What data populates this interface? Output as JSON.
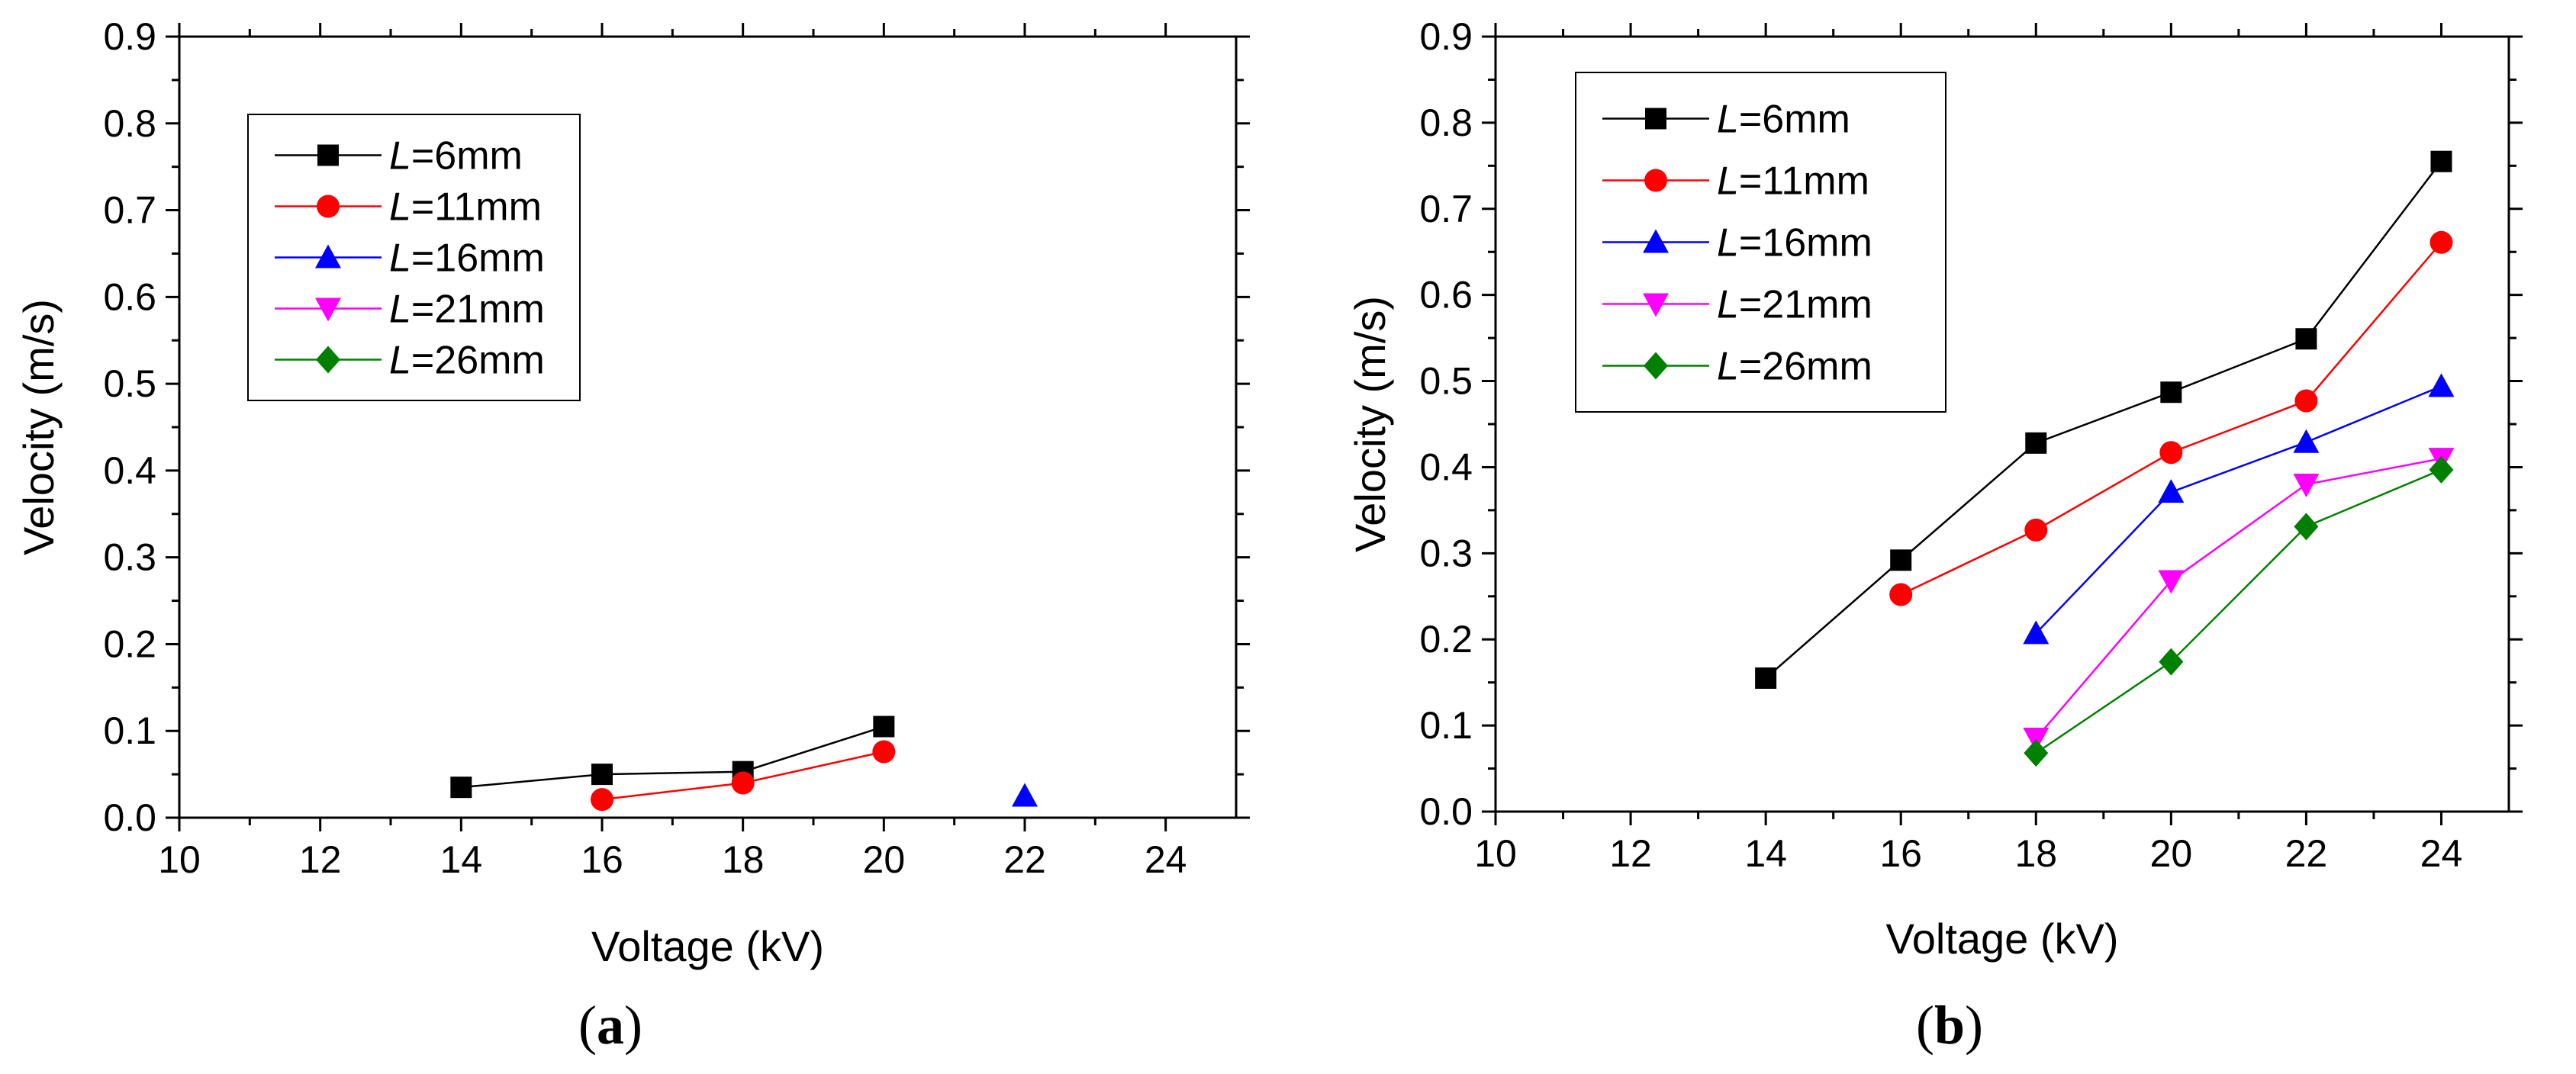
{
  "chart_data": [
    {
      "type": "line",
      "panel_label": "a",
      "xlabel": "Voltage (kV)",
      "ylabel": "Velocity (m/s)",
      "xlim": [
        10,
        25
      ],
      "ylim": [
        0,
        0.9
      ],
      "xticks": [
        10,
        12,
        14,
        16,
        18,
        20,
        22,
        24
      ],
      "xtick_labels": [
        "10",
        "12",
        "14",
        "16",
        "18",
        "20",
        "22",
        "24"
      ],
      "yticks": [
        0,
        0.1,
        0.2,
        0.3,
        0.4,
        0.5,
        0.6,
        0.7,
        0.8,
        0.9
      ],
      "ytick_labels": [
        "0.0",
        "0.1",
        "0.2",
        "0.3",
        "0.4",
        "0.5",
        "0.6",
        "0.7",
        "0.8",
        "0.9"
      ],
      "grid": false,
      "legend_position": "top-left",
      "series": [
        {
          "name": "L=6mm",
          "label_var": "L",
          "label_rest": "=6mm",
          "color": "#000000",
          "marker": "square",
          "x": [
            14,
            16,
            18,
            20
          ],
          "y": [
            0.035,
            0.05,
            0.053,
            0.105
          ]
        },
        {
          "name": "L=11mm",
          "label_var": "L",
          "label_rest": "=11mm",
          "color": "#ff0000",
          "marker": "circle",
          "x": [
            16,
            18,
            20
          ],
          "y": [
            0.021,
            0.04,
            0.076
          ]
        },
        {
          "name": "L=16mm",
          "label_var": "L",
          "label_rest": "=16mm",
          "color": "#0000ff",
          "marker": "triangle-up",
          "x": [
            22
          ],
          "y": [
            0.025
          ]
        },
        {
          "name": "L=21mm",
          "label_var": "L",
          "label_rest": "=21mm",
          "color": "#ff00ff",
          "marker": "triangle-down",
          "x": [],
          "y": []
        },
        {
          "name": "L=26mm",
          "label_var": "L",
          "label_rest": "=26mm",
          "color": "#008000",
          "marker": "diamond",
          "x": [],
          "y": []
        }
      ]
    },
    {
      "type": "line",
      "panel_label": "b",
      "xlabel": "Voltage (kV)",
      "ylabel": "Velocity (m/s)",
      "xlim": [
        10,
        25
      ],
      "ylim": [
        0,
        0.9
      ],
      "xticks": [
        10,
        12,
        14,
        16,
        18,
        20,
        22,
        24
      ],
      "xtick_labels": [
        "10",
        "12",
        "14",
        "16",
        "18",
        "20",
        "22",
        "24"
      ],
      "yticks": [
        0,
        0.1,
        0.2,
        0.3,
        0.4,
        0.5,
        0.6,
        0.7,
        0.8,
        0.9
      ],
      "ytick_labels": [
        "0.0",
        "0.1",
        "0.2",
        "0.3",
        "0.4",
        "0.5",
        "0.6",
        "0.7",
        "0.8",
        "0.9"
      ],
      "grid": false,
      "legend_position": "top-left",
      "series": [
        {
          "name": "L=6mm",
          "label_var": "L",
          "label_rest": "=6mm",
          "color": "#000000",
          "marker": "square",
          "x": [
            14,
            16,
            18,
            20,
            22,
            24
          ],
          "y": [
            0.155,
            0.292,
            0.428,
            0.487,
            0.549,
            0.755
          ]
        },
        {
          "name": "L=11mm",
          "label_var": "L",
          "label_rest": "=11mm",
          "color": "#ff0000",
          "marker": "circle",
          "x": [
            16,
            18,
            20,
            22,
            24
          ],
          "y": [
            0.252,
            0.327,
            0.417,
            0.477,
            0.661
          ]
        },
        {
          "name": "L=16mm",
          "label_var": "L",
          "label_rest": "=16mm",
          "color": "#0000ff",
          "marker": "triangle-up",
          "x": [
            18,
            20,
            22,
            24
          ],
          "y": [
            0.207,
            0.371,
            0.429,
            0.494
          ]
        },
        {
          "name": "L=21mm",
          "label_var": "L",
          "label_rest": "=21mm",
          "color": "#ff00ff",
          "marker": "triangle-down",
          "x": [
            18,
            20,
            22,
            24
          ],
          "y": [
            0.085,
            0.268,
            0.38,
            0.41
          ]
        },
        {
          "name": "L=26mm",
          "label_var": "L",
          "label_rest": "=26mm",
          "color": "#008000",
          "marker": "diamond",
          "x": [
            18,
            20,
            22,
            24
          ],
          "y": [
            0.068,
            0.174,
            0.331,
            0.397
          ]
        }
      ]
    }
  ]
}
